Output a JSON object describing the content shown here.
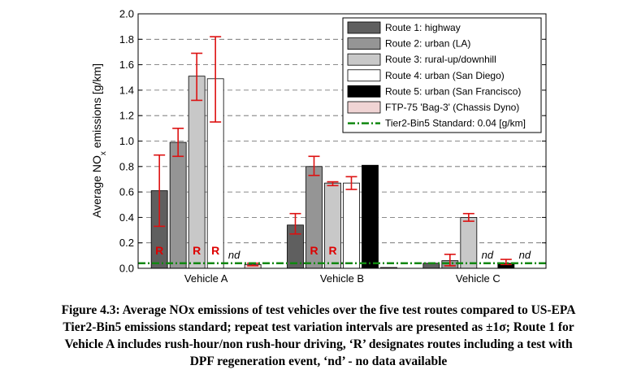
{
  "chart_data": {
    "type": "bar",
    "ylabel": "Average NOx emissions [g/km]",
    "ylim": [
      0,
      2.0
    ],
    "yticks": [
      "0.0",
      "0.2",
      "0.4",
      "0.6",
      "0.8",
      "1.0",
      "1.2",
      "1.4",
      "1.6",
      "1.8",
      "2.0"
    ],
    "grid": "horizontal-dashed",
    "legend_position": "top-right",
    "categories": [
      "Vehicle A",
      "Vehicle B",
      "Vehicle C"
    ],
    "series": [
      {
        "name": "Route 1: highway",
        "color": "#5f5f5f",
        "values": [
          0.61,
          0.34,
          0.04
        ],
        "err_low": [
          0.33,
          0.27,
          null
        ],
        "err_high": [
          0.89,
          0.43,
          null
        ]
      },
      {
        "name": "Route 2: urban (LA)",
        "color": "#959595",
        "values": [
          0.99,
          0.8,
          0.06
        ],
        "err_low": [
          0.88,
          0.73,
          0.02
        ],
        "err_high": [
          1.1,
          0.88,
          0.11
        ]
      },
      {
        "name": "Route 3: rural-up/downhill",
        "color": "#c8c8c8",
        "values": [
          1.51,
          0.67,
          0.4
        ],
        "err_low": [
          1.32,
          0.65,
          0.37
        ],
        "err_high": [
          1.69,
          0.68,
          0.43
        ]
      },
      {
        "name": "Route 4: urban (San Diego)",
        "color": "#ffffff",
        "values": [
          1.49,
          0.67,
          null
        ],
        "err_low": [
          1.15,
          0.62,
          null
        ],
        "err_high": [
          1.82,
          0.72,
          null
        ]
      },
      {
        "name": "Route 5: urban (San Francisco)",
        "color": "#000000",
        "values": [
          null,
          0.81,
          0.04
        ],
        "err_low": [
          null,
          null,
          0.03
        ],
        "err_high": [
          null,
          null,
          0.07
        ]
      },
      {
        "name": "FTP-75 'Bag-3' (Chassis Dyno)",
        "color": "#f0d4d4",
        "values": [
          0.03,
          0.005,
          null
        ],
        "err_low": [
          0.02,
          null,
          null
        ],
        "err_high": [
          0.04,
          null,
          null
        ]
      }
    ],
    "reference_line": {
      "name": "Tier2-Bin5 Standard: 0.04 [g/km]",
      "value": 0.04,
      "color": "#118811"
    },
    "annotations": [
      {
        "text": "R",
        "group": 0,
        "series": 0,
        "kind": "marker"
      },
      {
        "text": "R",
        "group": 0,
        "series": 2,
        "kind": "marker"
      },
      {
        "text": "R",
        "group": 0,
        "series": 3,
        "kind": "marker"
      },
      {
        "text": "nd",
        "group": 0,
        "series": 4,
        "kind": "nd"
      },
      {
        "text": "R",
        "group": 1,
        "series": 1,
        "kind": "marker"
      },
      {
        "text": "R",
        "group": 1,
        "series": 2,
        "kind": "marker"
      },
      {
        "text": "nd",
        "group": 2,
        "series": 3,
        "kind": "nd"
      },
      {
        "text": "nd",
        "group": 2,
        "series": 5,
        "kind": "nd"
      }
    ]
  },
  "caption": {
    "lines": [
      "Figure 4.3: Average NOx emissions of test vehicles over the five test routes compared to US-EPA",
      "Tier2-Bin5 emissions standard; repeat test variation intervals are presented as ±1σ; Route 1 for",
      "Vehicle A includes rush-hour/non rush-hour driving, ‘R’ designates routes including a test with",
      "DPF regeneration event, ‘nd’ - no data available"
    ]
  },
  "colors": {
    "error_bar": "#dd1111",
    "marker": "#dd0000"
  }
}
